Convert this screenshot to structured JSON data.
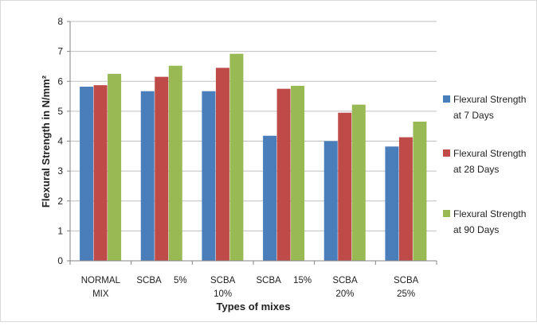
{
  "chart_data": {
    "type": "bar",
    "categories": [
      [
        "NORMAL",
        "MIX"
      ],
      [
        "SCBA     5%"
      ],
      [
        "SCBA",
        "10%"
      ],
      [
        "SCBA     15%"
      ],
      [
        "SCBA",
        "20%"
      ],
      [
        "SCBA",
        "25%"
      ]
    ],
    "series": [
      {
        "name": [
          "Flexural Strength",
          "at 7 Days"
        ],
        "color": "#4A7EBB",
        "values": [
          5.82,
          5.67,
          5.67,
          4.18,
          4.0,
          3.82
        ]
      },
      {
        "name": [
          "Flexural Strength",
          "at 28 Days"
        ],
        "color": "#BE4B48",
        "values": [
          5.87,
          6.15,
          6.45,
          5.75,
          4.95,
          4.13
        ]
      },
      {
        "name": [
          "Flexural Strength",
          "at 90 Days"
        ],
        "color": "#98B954",
        "values": [
          6.25,
          6.52,
          6.92,
          5.85,
          5.22,
          4.65
        ]
      }
    ],
    "xlabel": "Types of mixes",
    "ylabel": "Flexural Strength in  N/mm²",
    "ylim": [
      0,
      8
    ],
    "yticks": [
      "0",
      "1",
      "2",
      "3",
      "4",
      "5",
      "6",
      "7",
      "8"
    ],
    "grid": true,
    "legend": "right"
  }
}
